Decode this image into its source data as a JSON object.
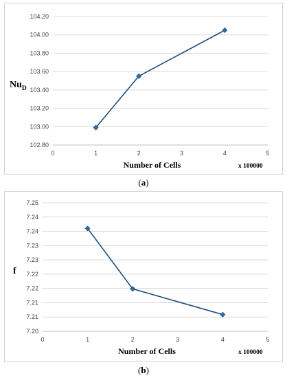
{
  "chart_data": [
    {
      "type": "line",
      "x": [
        1,
        2,
        4
      ],
      "y": [
        102.99,
        103.55,
        104.05
      ],
      "ylabel_main": "Nu",
      "ylabel_sub": "D",
      "xlabel": "Number of Cells",
      "x_multiplier": "x 100000",
      "xlim": [
        0,
        5
      ],
      "ylim": [
        102.8,
        104.2
      ],
      "xticks": [
        "0",
        "1",
        "2",
        "3",
        "4",
        "5"
      ],
      "yticks": [
        "102.80",
        "103.00",
        "103.20",
        "103.40",
        "103.60",
        "103.80",
        "104.00",
        "104.20"
      ],
      "grid": "horizontal",
      "color": "#1f4e79",
      "marker_color": "#2e6da4",
      "caption_open": "(",
      "caption_letter": "a",
      "caption_close": ")"
    },
    {
      "type": "line",
      "x": [
        1,
        2,
        4
      ],
      "y": [
        7.24,
        7.2165,
        7.2065
      ],
      "ylabel_main": "f",
      "ylabel_sub": "",
      "xlabel": "Number of Cells",
      "x_multiplier": "x 100000",
      "xlim": [
        0,
        5
      ],
      "ylim": [
        7.2,
        7.25
      ],
      "xticks": [
        "0",
        "1",
        "2",
        "3",
        "4",
        "5"
      ],
      "yticks": [
        "7.20",
        "7.21",
        "7.21",
        "7.22",
        "7.22",
        "7.23",
        "7.23",
        "7.24",
        "7.24",
        "7.25"
      ],
      "grid": "horizontal",
      "color": "#1f4e79",
      "marker_color": "#2e6da4",
      "caption_open": "(",
      "caption_letter": "b",
      "caption_close": ")"
    }
  ]
}
